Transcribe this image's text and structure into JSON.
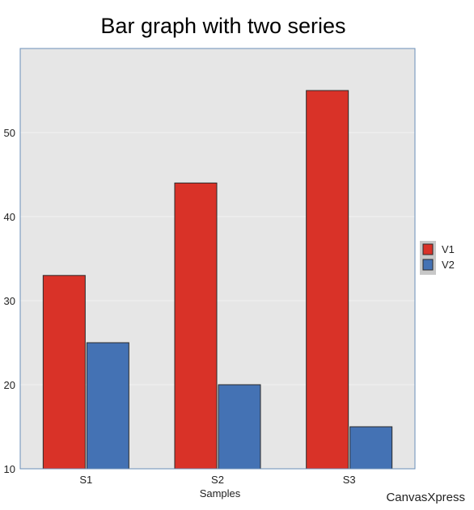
{
  "chart_data": {
    "type": "bar",
    "title": "Bar graph with two series",
    "xlabel": "Samples",
    "ylabel": "",
    "categories": [
      "S1",
      "S2",
      "S3"
    ],
    "series": [
      {
        "name": "V1",
        "color": "#d93228",
        "values": [
          33,
          44,
          55
        ]
      },
      {
        "name": "V2",
        "color": "#4472b4",
        "values": [
          25,
          20,
          15
        ]
      }
    ],
    "ylim": [
      10,
      60
    ],
    "yticks": [
      10,
      20,
      30,
      40,
      50
    ],
    "grid": true,
    "legend_position": "right"
  },
  "branding": "CanvasXpress",
  "colors": {
    "plot_background": "#e6e6e6",
    "plot_border": "#6a8fb8",
    "gridline": "#f3f3f3"
  }
}
